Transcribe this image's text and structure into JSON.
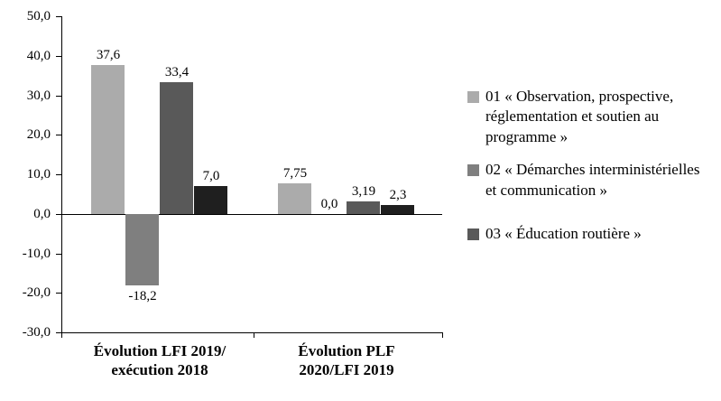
{
  "chart_data": {
    "type": "bar",
    "title": "",
    "xlabel": "",
    "ylabel": "",
    "ylim": [
      -30,
      50
    ],
    "grid": false,
    "legend_position": "right",
    "y_ticks": [
      {
        "value": 50,
        "label": "50,0"
      },
      {
        "value": 40,
        "label": "40,0"
      },
      {
        "value": 30,
        "label": "30,0"
      },
      {
        "value": 20,
        "label": "20,0"
      },
      {
        "value": 10,
        "label": "10,0"
      },
      {
        "value": 0,
        "label": "0,0"
      },
      {
        "value": -10,
        "label": "-10,0"
      },
      {
        "value": -20,
        "label": "-20,0"
      },
      {
        "value": -30,
        "label": "-30,0"
      }
    ],
    "categories": [
      {
        "lines": [
          "Évolution LFI 2019/",
          "exécution 2018"
        ]
      },
      {
        "lines": [
          "Évolution PLF",
          "2020/LFI 2019"
        ]
      }
    ],
    "series": [
      {
        "name": "01 « Observation, prospective, réglementation et soutien au programme »",
        "color": "#ababab",
        "values": [
          37.6,
          7.75
        ],
        "value_labels": [
          "37,6",
          "7,75"
        ]
      },
      {
        "name": "02 « Démarches interministérielles et communication »",
        "color": "#7f7f7f",
        "values": [
          -18.2,
          0.0
        ],
        "value_labels": [
          "-18,2",
          "0,0"
        ]
      },
      {
        "name": "03 « Éducation routière »",
        "color": "#595959",
        "values": [
          33.4,
          3.19
        ],
        "value_labels": [
          "33,4",
          "3,19"
        ]
      },
      {
        "name": "",
        "color": "#1f1f1f",
        "values": [
          7.0,
          2.3
        ],
        "value_labels": [
          "7,0",
          "2,3"
        ]
      }
    ],
    "legend": [
      "01 « Observation, prospective, réglementation et soutien au programme »",
      "02 « Démarches interministérielles et communication »",
      "03 « Éducation routière »"
    ]
  }
}
